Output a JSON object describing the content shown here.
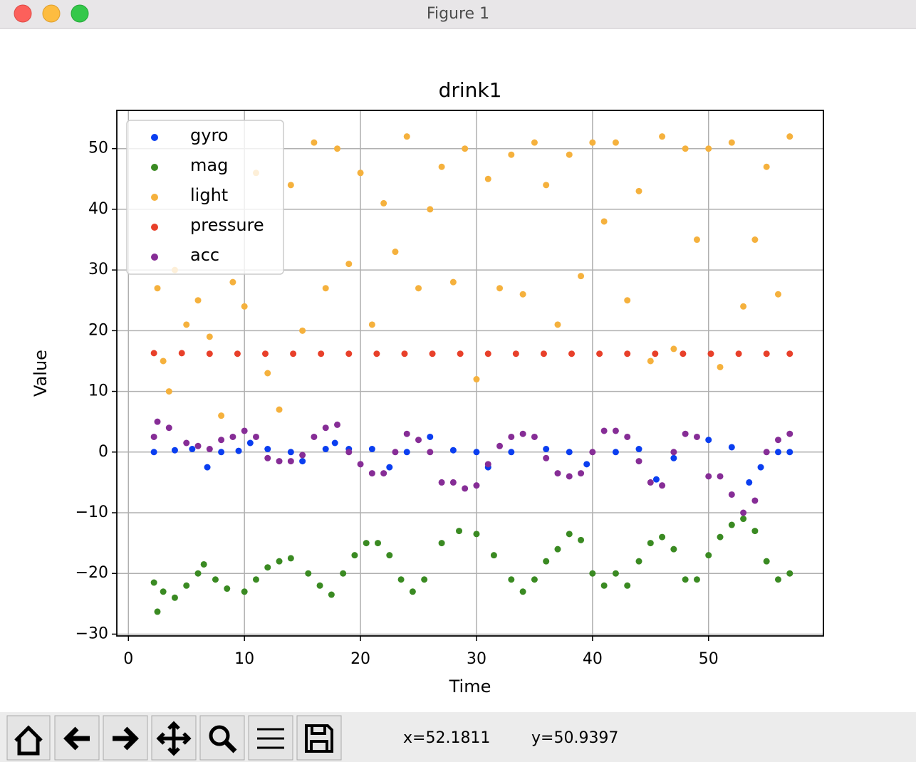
{
  "window": {
    "title": "Figure 1",
    "status_x": "x=52.1811",
    "status_y": "y=50.9397"
  },
  "chart_data": {
    "type": "scatter",
    "title": "drink1",
    "x_label": "Time",
    "y_label": "Value",
    "xlim": [
      -1,
      59.9
    ],
    "ylim": [
      -30.3,
      56.3
    ],
    "xticks": [
      0,
      10,
      20,
      30,
      40,
      50
    ],
    "yticks": [
      {
        "value": -30,
        "label": "−30"
      },
      {
        "value": -20,
        "label": "−20"
      },
      {
        "value": -10,
        "label": "−10"
      },
      0,
      10,
      20,
      30,
      40,
      50
    ],
    "grid": true,
    "legend": "upper left",
    "series": [
      {
        "name": "gyro",
        "color": "#0a3ef0",
        "x": [
          2.2,
          4,
          5.5,
          6.8,
          8,
          9.5,
          10.5,
          12,
          14,
          15,
          17,
          17.8,
          19,
          21,
          22.5,
          24,
          26,
          28,
          30,
          31,
          33,
          36,
          38,
          39.5,
          42,
          44,
          45.5,
          47,
          50,
          52,
          53.5,
          54.5,
          56,
          57
        ],
        "values": [
          0,
          0.3,
          0.5,
          -2.5,
          0,
          0.2,
          1.5,
          0.5,
          0,
          -1.5,
          0.5,
          1.5,
          0.5,
          0.5,
          -2.5,
          0,
          2.5,
          0.3,
          0,
          -2.5,
          0,
          0.5,
          0,
          -2,
          0,
          0.5,
          -4.5,
          -1,
          2,
          0.8,
          -5,
          -2.5,
          0,
          0
        ]
      },
      {
        "name": "mag",
        "color": "#3a8a22",
        "x": [
          2.2,
          2.5,
          3,
          4,
          5,
          6,
          6.5,
          7.5,
          8.5,
          10,
          11,
          12,
          13,
          14,
          15.5,
          16.5,
          17.5,
          18.5,
          19.5,
          20.5,
          21.5,
          22.5,
          23.5,
          24.5,
          25.5,
          27,
          28.5,
          30,
          31.5,
          33,
          34,
          35,
          36,
          37,
          38,
          39,
          40,
          41,
          42,
          43,
          44,
          45,
          46,
          47,
          48,
          49,
          50,
          51,
          52,
          53,
          54,
          55,
          56,
          57
        ],
        "values": [
          -21.5,
          -26.3,
          -23,
          -24,
          -22,
          -20,
          -18.5,
          -21,
          -22.5,
          -23,
          -21,
          -19,
          -18,
          -17.5,
          -20,
          -22,
          -23.5,
          -20,
          -17,
          -15,
          -15,
          -17,
          -21,
          -23,
          -21,
          -15,
          -13,
          -13.5,
          -17,
          -21,
          -23,
          -21,
          -18,
          -16,
          -13.5,
          -14.5,
          -20,
          -22,
          -20,
          -22,
          -18,
          -15,
          -14,
          -16,
          -21,
          -21,
          -17,
          -14,
          -12,
          -11,
          -13,
          -18,
          -21,
          -20
        ]
      },
      {
        "name": "light",
        "color": "#f5b13d",
        "x": [
          2.5,
          3,
          3.5,
          4,
          5,
          6,
          7,
          8,
          9,
          10,
          11,
          12,
          13,
          14,
          15,
          16,
          17,
          18,
          19,
          20,
          21,
          22,
          23,
          24,
          25,
          26,
          27,
          28,
          29,
          30,
          31,
          32,
          33,
          34,
          35,
          36,
          37,
          38,
          39,
          40,
          41,
          42,
          43,
          44,
          45,
          46,
          47,
          48,
          49,
          50,
          51,
          52,
          53,
          54,
          55,
          56,
          57
        ],
        "values": [
          27,
          15,
          10,
          30,
          21,
          25,
          19,
          6,
          28,
          24,
          46,
          13,
          7,
          44,
          20,
          51,
          27,
          50,
          31,
          46,
          21,
          41,
          33,
          52,
          27,
          40,
          47,
          28,
          50,
          12,
          45,
          27,
          49,
          26,
          51,
          44,
          21,
          49,
          29,
          51,
          38,
          51,
          25,
          43,
          15,
          52,
          17,
          50,
          35,
          50,
          14,
          51,
          24,
          35,
          47,
          26,
          52
        ]
      },
      {
        "name": "pressure",
        "color": "#e8402a",
        "x": [
          2.2,
          4.6,
          7,
          9.4,
          11.8,
          14.2,
          16.6,
          19,
          21.4,
          23.8,
          26.2,
          28.6,
          31,
          33.4,
          35.8,
          38.2,
          40.6,
          43,
          45.4,
          47.8,
          50.2,
          52.6,
          55,
          57
        ],
        "values": [
          16.3,
          16.3,
          16.2,
          16.2,
          16.2,
          16.2,
          16.2,
          16.2,
          16.2,
          16.2,
          16.2,
          16.2,
          16.2,
          16.2,
          16.2,
          16.2,
          16.2,
          16.2,
          16.2,
          16.2,
          16.2,
          16.2,
          16.2,
          16.2
        ]
      },
      {
        "name": "acc",
        "color": "#862d96",
        "x": [
          2.2,
          2.5,
          3.5,
          5,
          6,
          7,
          8,
          9,
          10,
          11,
          12,
          13,
          14,
          15,
          16,
          17,
          18,
          19,
          20,
          21,
          22,
          23,
          24,
          25,
          26,
          27,
          28,
          29,
          30,
          31,
          32,
          33,
          34,
          35,
          36,
          37,
          38,
          39,
          40,
          41,
          42,
          43,
          44,
          45,
          46,
          47,
          48,
          49,
          50,
          51,
          52,
          53,
          54,
          55,
          56,
          57
        ],
        "values": [
          2.5,
          5,
          4,
          1.5,
          1,
          0.5,
          2,
          2.5,
          3.5,
          2.5,
          -1,
          -1.5,
          -1.5,
          -0.5,
          2.5,
          4,
          4.5,
          0,
          -2,
          -3.5,
          -3.5,
          0,
          3,
          2,
          0,
          -5,
          -5,
          -6,
          -5.5,
          -2,
          1,
          2.5,
          3,
          2.5,
          -1,
          -3.5,
          -4,
          -3.5,
          0,
          3.5,
          3.5,
          2.5,
          -1.5,
          -5,
          -5.5,
          0,
          3,
          2.5,
          -4,
          -4,
          -7,
          -10,
          -8,
          0,
          2,
          3
        ]
      }
    ]
  }
}
